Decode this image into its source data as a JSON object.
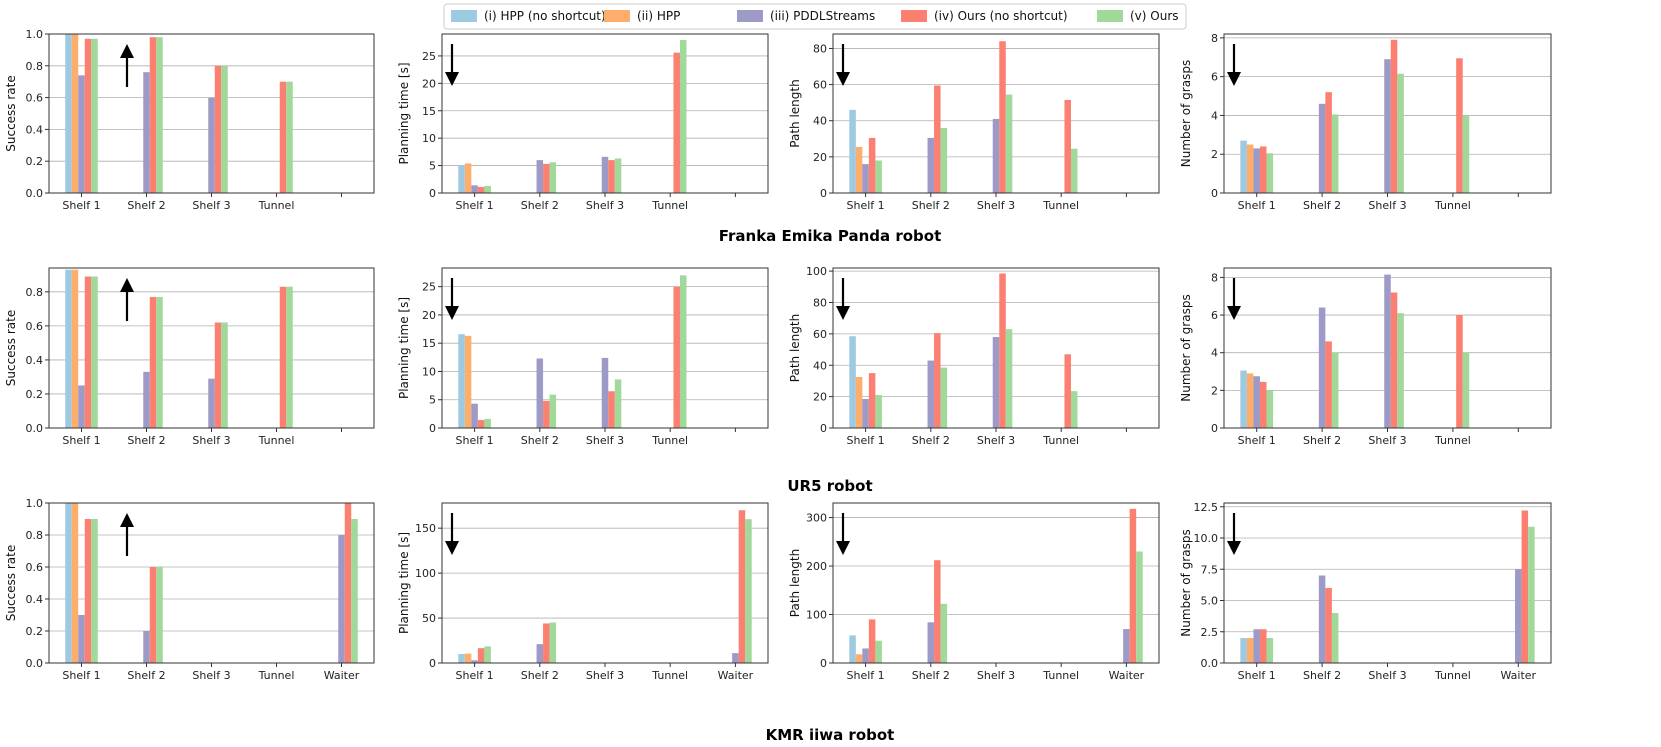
{
  "legend": [
    {
      "label": "(i) HPP (no shortcut)",
      "color": "#9ecae1"
    },
    {
      "label": "(ii) HPP",
      "color": "#fdae6b"
    },
    {
      "label": "(iii) PDDLStreams",
      "color": "#9e9ac8"
    },
    {
      "label": "(iv) Ours (no shortcut)",
      "color": "#fb8072"
    },
    {
      "label": "(v) Ours",
      "color": "#a1d99b"
    }
  ],
  "rows": [
    {
      "title": "Franka Emika Panda robot"
    },
    {
      "title": "UR5 robot"
    },
    {
      "title": "KMR iiwa robot"
    }
  ],
  "chart_data": [
    {
      "type": "bar",
      "row": 0,
      "col": 0,
      "ylabel": "Success rate",
      "arrow": "up",
      "ylim": [
        0,
        1.0
      ],
      "yticks": [
        0.0,
        0.2,
        0.4,
        0.6,
        0.8,
        1.0
      ],
      "ytick_labels": [
        "0.0",
        "0.2",
        "0.4",
        "0.6",
        "0.8",
        "1.0"
      ],
      "categories": [
        "Shelf 1",
        "Shelf 2",
        "Shelf 3",
        "Tunnel"
      ],
      "ncat": 5,
      "series": [
        {
          "name": "(i) HPP (no shortcut)",
          "values": [
            1.0,
            null,
            null,
            null
          ]
        },
        {
          "name": "(ii) HPP",
          "values": [
            1.0,
            null,
            null,
            null
          ]
        },
        {
          "name": "(iii) PDDLStreams",
          "values": [
            0.74,
            0.76,
            0.6,
            null
          ]
        },
        {
          "name": "(iv) Ours (no shortcut)",
          "values": [
            0.97,
            0.98,
            0.8,
            0.7
          ]
        },
        {
          "name": "(v) Ours",
          "values": [
            0.97,
            0.98,
            0.8,
            0.7
          ]
        }
      ]
    },
    {
      "type": "bar",
      "row": 0,
      "col": 1,
      "ylabel": "Planning time [s]",
      "arrow": "down",
      "ylim": [
        0,
        29
      ],
      "yticks": [
        0,
        5,
        10,
        15,
        20,
        25
      ],
      "ytick_labels": [
        "0",
        "5",
        "10",
        "15",
        "20",
        "25"
      ],
      "categories": [
        "Shelf 1",
        "Shelf 2",
        "Shelf 3",
        "Tunnel"
      ],
      "ncat": 5,
      "series": [
        {
          "name": "(i) HPP (no shortcut)",
          "values": [
            5.0,
            null,
            null,
            null
          ]
        },
        {
          "name": "(ii) HPP",
          "values": [
            5.4,
            null,
            null,
            null
          ]
        },
        {
          "name": "(iii) PDDLStreams",
          "values": [
            1.4,
            6.0,
            6.6,
            null
          ]
        },
        {
          "name": "(iv) Ours (no shortcut)",
          "values": [
            1.1,
            5.3,
            6.0,
            25.6
          ]
        },
        {
          "name": "(v) Ours",
          "values": [
            1.3,
            5.6,
            6.3,
            27.9
          ]
        }
      ]
    },
    {
      "type": "bar",
      "row": 0,
      "col": 2,
      "ylabel": "Path length",
      "arrow": "down",
      "ylim": [
        0,
        88
      ],
      "yticks": [
        0,
        20,
        40,
        60,
        80
      ],
      "ytick_labels": [
        "0",
        "20",
        "40",
        "60",
        "80"
      ],
      "categories": [
        "Shelf 1",
        "Shelf 2",
        "Shelf 3",
        "Tunnel"
      ],
      "ncat": 5,
      "series": [
        {
          "name": "(i) HPP (no shortcut)",
          "values": [
            46,
            null,
            null,
            null
          ]
        },
        {
          "name": "(ii) HPP",
          "values": [
            25.5,
            null,
            null,
            null
          ]
        },
        {
          "name": "(iii) PDDLStreams",
          "values": [
            16,
            30.5,
            41,
            null
          ]
        },
        {
          "name": "(iv) Ours (no shortcut)",
          "values": [
            30.5,
            59.5,
            84,
            51.5
          ]
        },
        {
          "name": "(v) Ours",
          "values": [
            18,
            36,
            54.5,
            24.5
          ]
        }
      ]
    },
    {
      "type": "bar",
      "row": 0,
      "col": 3,
      "ylabel": "Number of grasps",
      "arrow": "down",
      "ylim": [
        0,
        8.2
      ],
      "yticks": [
        0,
        2,
        4,
        6,
        8
      ],
      "ytick_labels": [
        "0",
        "2",
        "4",
        "6",
        "8"
      ],
      "categories": [
        "Shelf 1",
        "Shelf 2",
        "Shelf 3",
        "Tunnel"
      ],
      "ncat": 5,
      "series": [
        {
          "name": "(i) HPP (no shortcut)",
          "values": [
            2.7,
            null,
            null,
            null
          ]
        },
        {
          "name": "(ii) HPP",
          "values": [
            2.5,
            null,
            null,
            null
          ]
        },
        {
          "name": "(iii) PDDLStreams",
          "values": [
            2.3,
            4.6,
            6.9,
            null
          ]
        },
        {
          "name": "(iv) Ours (no shortcut)",
          "values": [
            2.4,
            5.2,
            7.9,
            6.95
          ]
        },
        {
          "name": "(v) Ours",
          "values": [
            2.05,
            4.05,
            6.15,
            4.0
          ]
        }
      ]
    },
    {
      "type": "bar",
      "row": 1,
      "col": 0,
      "ylabel": "Success rate",
      "arrow": "up",
      "ylim": [
        0,
        0.94
      ],
      "yticks": [
        0.0,
        0.2,
        0.4,
        0.6,
        0.8
      ],
      "ytick_labels": [
        "0.0",
        "0.2",
        "0.4",
        "0.6",
        "0.8"
      ],
      "categories": [
        "Shelf 1",
        "Shelf 2",
        "Shelf 3",
        "Tunnel"
      ],
      "ncat": 5,
      "series": [
        {
          "name": "(i) HPP (no shortcut)",
          "values": [
            0.93,
            null,
            null,
            null
          ]
        },
        {
          "name": "(ii) HPP",
          "values": [
            0.93,
            null,
            null,
            null
          ]
        },
        {
          "name": "(iii) PDDLStreams",
          "values": [
            0.25,
            0.33,
            0.29,
            null
          ]
        },
        {
          "name": "(iv) Ours (no shortcut)",
          "values": [
            0.89,
            0.77,
            0.62,
            0.83
          ]
        },
        {
          "name": "(v) Ours",
          "values": [
            0.89,
            0.77,
            0.62,
            0.83
          ]
        }
      ]
    },
    {
      "type": "bar",
      "row": 1,
      "col": 1,
      "ylabel": "Planning time [s]",
      "arrow": "down",
      "ylim": [
        0,
        28.3
      ],
      "yticks": [
        0,
        5,
        10,
        15,
        20,
        25
      ],
      "ytick_labels": [
        "0",
        "5",
        "10",
        "15",
        "20",
        "25"
      ],
      "categories": [
        "Shelf 1",
        "Shelf 2",
        "Shelf 3",
        "Tunnel"
      ],
      "ncat": 5,
      "series": [
        {
          "name": "(i) HPP (no shortcut)",
          "values": [
            16.6,
            null,
            null,
            null
          ]
        },
        {
          "name": "(ii) HPP",
          "values": [
            16.3,
            null,
            null,
            null
          ]
        },
        {
          "name": "(iii) PDDLStreams",
          "values": [
            4.3,
            12.3,
            12.4,
            null
          ]
        },
        {
          "name": "(iv) Ours (no shortcut)",
          "values": [
            1.4,
            4.8,
            6.5,
            25.0
          ]
        },
        {
          "name": "(v) Ours",
          "values": [
            1.6,
            5.9,
            8.6,
            27.0
          ]
        }
      ]
    },
    {
      "type": "bar",
      "row": 1,
      "col": 2,
      "ylabel": "Path length",
      "arrow": "down",
      "ylim": [
        0,
        102
      ],
      "yticks": [
        0,
        20,
        40,
        60,
        80,
        100
      ],
      "ytick_labels": [
        "0",
        "20",
        "40",
        "60",
        "80",
        "100"
      ],
      "categories": [
        "Shelf 1",
        "Shelf 2",
        "Shelf 3",
        "Tunnel"
      ],
      "ncat": 5,
      "series": [
        {
          "name": "(i) HPP (no shortcut)",
          "values": [
            58.5,
            null,
            null,
            null
          ]
        },
        {
          "name": "(ii) HPP",
          "values": [
            32.5,
            null,
            null,
            null
          ]
        },
        {
          "name": "(iii) PDDLStreams",
          "values": [
            18.5,
            43,
            58,
            null
          ]
        },
        {
          "name": "(iv) Ours (no shortcut)",
          "values": [
            35,
            60.5,
            98.5,
            47
          ]
        },
        {
          "name": "(v) Ours",
          "values": [
            21,
            38.5,
            63,
            23.5
          ]
        }
      ]
    },
    {
      "type": "bar",
      "row": 1,
      "col": 3,
      "ylabel": "Number of grasps",
      "arrow": "down",
      "ylim": [
        0,
        8.5
      ],
      "yticks": [
        0,
        2,
        4,
        6,
        8
      ],
      "ytick_labels": [
        "0",
        "2",
        "4",
        "6",
        "8"
      ],
      "categories": [
        "Shelf 1",
        "Shelf 2",
        "Shelf 3",
        "Tunnel"
      ],
      "ncat": 5,
      "series": [
        {
          "name": "(i) HPP (no shortcut)",
          "values": [
            3.05,
            null,
            null,
            null
          ]
        },
        {
          "name": "(ii) HPP",
          "values": [
            2.9,
            null,
            null,
            null
          ]
        },
        {
          "name": "(iii) PDDLStreams",
          "values": [
            2.75,
            6.4,
            8.15,
            null
          ]
        },
        {
          "name": "(iv) Ours (no shortcut)",
          "values": [
            2.45,
            4.6,
            7.2,
            6.0
          ]
        },
        {
          "name": "(v) Ours",
          "values": [
            2.0,
            4.0,
            6.1,
            4.0
          ]
        }
      ]
    },
    {
      "type": "bar",
      "row": 2,
      "col": 0,
      "ylabel": "Success rate",
      "arrow": "up",
      "ylim": [
        0,
        1.0
      ],
      "yticks": [
        0.0,
        0.2,
        0.4,
        0.6,
        0.8,
        1.0
      ],
      "ytick_labels": [
        "0.0",
        "0.2",
        "0.4",
        "0.6",
        "0.8",
        "1.0"
      ],
      "categories": [
        "Shelf 1",
        "Shelf 2",
        "Shelf 3",
        "Tunnel",
        "Waiter"
      ],
      "ncat": 5,
      "series": [
        {
          "name": "(i) HPP (no shortcut)",
          "values": [
            1.0,
            null,
            null,
            null,
            null
          ]
        },
        {
          "name": "(ii) HPP",
          "values": [
            1.0,
            null,
            null,
            null,
            null
          ]
        },
        {
          "name": "(iii) PDDLStreams",
          "values": [
            0.3,
            0.2,
            null,
            null,
            0.8
          ]
        },
        {
          "name": "(iv) Ours (no shortcut)",
          "values": [
            0.9,
            0.6,
            null,
            null,
            1.0
          ]
        },
        {
          "name": "(v) Ours",
          "values": [
            0.9,
            0.6,
            null,
            null,
            0.9
          ]
        }
      ]
    },
    {
      "type": "bar",
      "row": 2,
      "col": 1,
      "ylabel": "Planning time [s]",
      "arrow": "down",
      "ylim": [
        0,
        178
      ],
      "yticks": [
        0,
        50,
        100,
        150
      ],
      "ytick_labels": [
        "0",
        "50",
        "100",
        "150"
      ],
      "categories": [
        "Shelf 1",
        "Shelf 2",
        "Shelf 3",
        "Tunnel",
        "Waiter"
      ],
      "ncat": 5,
      "series": [
        {
          "name": "(i) HPP (no shortcut)",
          "values": [
            10,
            null,
            null,
            null,
            null
          ]
        },
        {
          "name": "(ii) HPP",
          "values": [
            10.5,
            null,
            null,
            null,
            null
          ]
        },
        {
          "name": "(iii) PDDLStreams",
          "values": [
            3,
            21,
            null,
            null,
            11
          ]
        },
        {
          "name": "(iv) Ours (no shortcut)",
          "values": [
            16.5,
            44,
            null,
            null,
            170
          ]
        },
        {
          "name": "(v) Ours",
          "values": [
            18.5,
            45,
            null,
            null,
            160
          ]
        }
      ]
    },
    {
      "type": "bar",
      "row": 2,
      "col": 2,
      "ylabel": "Path length",
      "arrow": "down",
      "ylim": [
        0,
        330
      ],
      "yticks": [
        0,
        100,
        200,
        300
      ],
      "ytick_labels": [
        "0",
        "100",
        "200",
        "300"
      ],
      "categories": [
        "Shelf 1",
        "Shelf 2",
        "Shelf 3",
        "Tunnel",
        "Waiter"
      ],
      "ncat": 5,
      "series": [
        {
          "name": "(i) HPP (no shortcut)",
          "values": [
            57,
            null,
            null,
            null,
            null
          ]
        },
        {
          "name": "(ii) HPP",
          "values": [
            18,
            null,
            null,
            null,
            null
          ]
        },
        {
          "name": "(iii) PDDLStreams",
          "values": [
            30,
            84,
            null,
            null,
            70
          ]
        },
        {
          "name": "(iv) Ours (no shortcut)",
          "values": [
            90,
            212,
            null,
            null,
            318
          ]
        },
        {
          "name": "(v) Ours",
          "values": [
            46,
            122,
            null,
            null,
            230
          ]
        }
      ]
    },
    {
      "type": "bar",
      "row": 2,
      "col": 3,
      "ylabel": "Number of grasps",
      "arrow": "down",
      "ylim": [
        0,
        12.8
      ],
      "yticks": [
        0.0,
        2.5,
        5.0,
        7.5,
        10.0,
        12.5
      ],
      "ytick_labels": [
        "0.0",
        "2.5",
        "5.0",
        "7.5",
        "10.0",
        "12.5"
      ],
      "categories": [
        "Shelf 1",
        "Shelf 2",
        "Shelf 3",
        "Tunnel",
        "Waiter"
      ],
      "ncat": 5,
      "series": [
        {
          "name": "(i) HPP (no shortcut)",
          "values": [
            2.0,
            null,
            null,
            null,
            null
          ]
        },
        {
          "name": "(ii) HPP",
          "values": [
            2.0,
            null,
            null,
            null,
            null
          ]
        },
        {
          "name": "(iii) PDDLStreams",
          "values": [
            2.7,
            7.0,
            null,
            null,
            7.5
          ]
        },
        {
          "name": "(iv) Ours (no shortcut)",
          "values": [
            2.7,
            6.0,
            null,
            null,
            12.2
          ]
        },
        {
          "name": "(v) Ours",
          "values": [
            2.0,
            4.0,
            null,
            null,
            10.9
          ]
        }
      ]
    }
  ]
}
